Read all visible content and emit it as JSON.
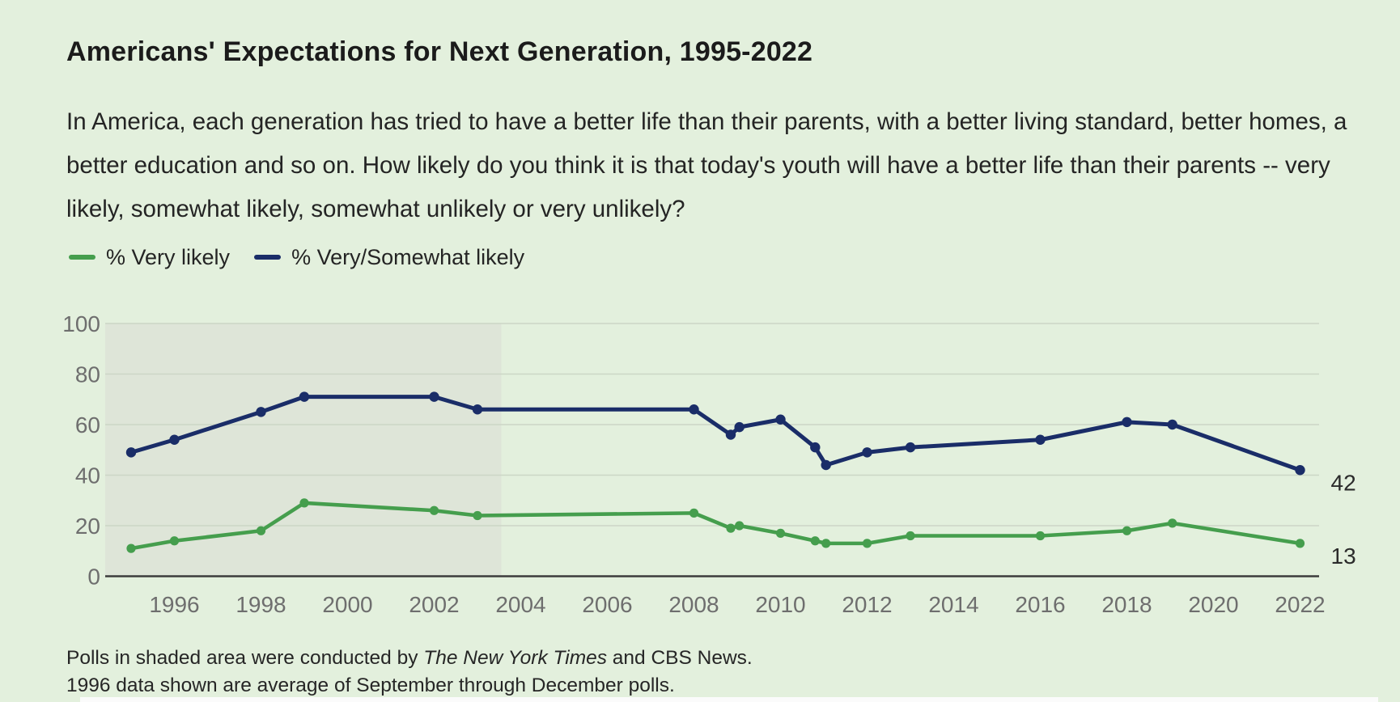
{
  "page": {
    "background_color": "#e3f0dd"
  },
  "header": {
    "title": "Americans' Expectations for Next Generation, 1995-2022",
    "description": "In America, each generation has tried to have a better life than their parents, with a better living standard, better homes, a better education and so on. How likely do you think it is that today's youth will have a better life than their parents -- very likely, somewhat likely, somewhat unlikely or very unlikely?"
  },
  "legend": [
    {
      "label": "% Very likely",
      "color": "#459e4d"
    },
    {
      "label": "% Very/Somewhat likely",
      "color": "#1a2d68"
    }
  ],
  "chart_data": {
    "type": "line",
    "x": [
      1995,
      1996,
      1998,
      1999,
      2002,
      2003,
      2008,
      2008.85,
      2009.05,
      2010,
      2010.8,
      2011.05,
      2012,
      2013,
      2016,
      2018,
      2019.05,
      2022
    ],
    "series": [
      {
        "name": "% Very likely",
        "color": "#459e4d",
        "values": [
          11,
          14,
          18,
          29,
          26,
          24,
          25,
          19,
          20,
          17,
          14,
          13,
          13,
          16,
          16,
          18,
          21,
          13
        ]
      },
      {
        "name": "% Very/Somewhat likely",
        "color": "#1a2d68",
        "values": [
          49,
          54,
          65,
          71,
          71,
          66,
          66,
          56,
          59,
          62,
          51,
          44,
          49,
          51,
          54,
          61,
          60,
          42
        ]
      }
    ],
    "end_labels": [
      {
        "text": "42",
        "series": "% Very/Somewhat likely"
      },
      {
        "text": "13",
        "series": "% Very likely"
      }
    ],
    "y_ticks": [
      0,
      20,
      40,
      60,
      80,
      100
    ],
    "x_ticks": [
      1996,
      1998,
      2000,
      2002,
      2004,
      2006,
      2008,
      2010,
      2012,
      2014,
      2016,
      2018,
      2020,
      2022
    ],
    "ylim": [
      0,
      100
    ],
    "xlim": [
      1994.4,
      2023.3
    ],
    "grid": true,
    "legend_position": "top-left",
    "shaded_region": {
      "from": 1994.4,
      "to": 2003.55,
      "color": "#dee5d8"
    },
    "grid_color": "#ccd6c6",
    "axis_color": "#3c3c3c",
    "tick_color": "#6e6e6e",
    "end_label_color": "#2b2b2b"
  },
  "footnotes": {
    "line1_prefix": "Polls in shaded area were conducted by ",
    "line1_italic": "The New York Times",
    "line1_suffix": " and CBS News.",
    "line2": "1996 data shown are average of September through December polls."
  }
}
